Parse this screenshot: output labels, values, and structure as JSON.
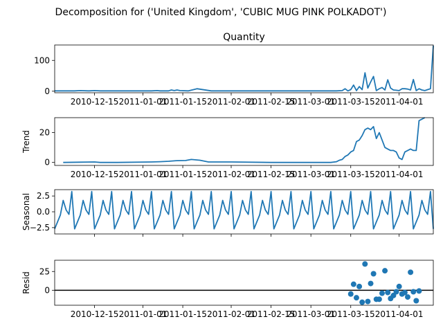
{
  "title": "Decomposition for ('United Kingdom', 'CUBIC MUG PINK POLKADOT')",
  "colors": {
    "line": "#1f77b4",
    "axis": "#000000",
    "zero_line": "#000000",
    "background": "#ffffff"
  },
  "chart_data": [
    {
      "type": "line",
      "panel": "observed",
      "title": "Quantity",
      "ylabel": "",
      "xrange": [
        "2010-12-01",
        "2011-04-13"
      ],
      "ylim": [
        -5,
        150
      ],
      "yticks": [
        0,
        100
      ],
      "xticks": [
        "2010-12-15",
        "2011-01-01",
        "2011-01-15",
        "2011-02-01",
        "2011-02-15",
        "2011-03-01",
        "2011-03-15",
        "2011-04-01"
      ],
      "show_xticklabels": true,
      "series": [
        {
          "x": [
            "2010-12-01",
            "2010-12-03",
            "2010-12-06",
            "2010-12-08",
            "2010-12-10",
            "2010-12-13",
            "2010-12-15",
            "2010-12-17",
            "2010-12-20",
            "2010-12-22",
            "2011-01-04",
            "2011-01-06",
            "2011-01-07",
            "2011-01-10",
            "2011-01-11",
            "2011-01-12",
            "2011-01-13",
            "2011-01-14",
            "2011-01-17",
            "2011-01-20",
            "2011-01-25",
            "2011-02-01",
            "2011-02-15",
            "2011-03-01",
            "2011-03-10",
            "2011-03-12",
            "2011-03-13",
            "2011-03-14",
            "2011-03-15",
            "2011-03-16",
            "2011-03-17",
            "2011-03-18",
            "2011-03-19",
            "2011-03-20",
            "2011-03-21",
            "2011-03-22",
            "2011-03-23",
            "2011-03-24",
            "2011-03-25",
            "2011-03-26",
            "2011-03-27",
            "2011-03-28",
            "2011-03-29",
            "2011-03-30",
            "2011-03-31",
            "2011-04-01",
            "2011-04-02",
            "2011-04-03",
            "2011-04-04",
            "2011-04-05",
            "2011-04-06",
            "2011-04-07",
            "2011-04-08",
            "2011-04-09",
            "2011-04-10",
            "2011-04-11",
            "2011-04-12",
            "2011-04-13"
          ],
          "values": [
            1,
            1,
            1,
            1,
            2,
            1,
            2,
            1,
            1,
            1,
            1,
            2,
            1,
            1,
            4,
            2,
            4,
            2,
            1,
            8,
            1,
            1,
            1,
            1,
            1,
            2,
            8,
            1,
            5,
            20,
            2,
            15,
            5,
            60,
            10,
            30,
            48,
            2,
            8,
            12,
            4,
            37,
            10,
            4,
            3,
            2,
            8,
            8,
            7,
            4,
            38,
            2,
            8,
            4,
            2,
            5,
            8,
            148
          ]
        }
      ]
    },
    {
      "type": "line",
      "panel": "trend",
      "title": "",
      "ylabel": "Trend",
      "xrange": [
        "2010-12-01",
        "2011-04-13"
      ],
      "ylim": [
        -2,
        30
      ],
      "yticks": [
        0,
        20
      ],
      "xticks": [
        "2010-12-15",
        "2011-01-01",
        "2011-01-15",
        "2011-02-01",
        "2011-02-15",
        "2011-03-01",
        "2011-03-15",
        "2011-04-01"
      ],
      "show_xticklabels": true,
      "series": [
        {
          "x": [
            "2010-12-04",
            "2010-12-10",
            "2010-12-15",
            "2010-12-17",
            "2010-12-20",
            "2010-12-23",
            "2011-01-04",
            "2011-01-07",
            "2011-01-10",
            "2011-01-13",
            "2011-01-16",
            "2011-01-18",
            "2011-01-21",
            "2011-01-24",
            "2011-02-01",
            "2011-02-15",
            "2011-03-01",
            "2011-03-08",
            "2011-03-10",
            "2011-03-11",
            "2011-03-12",
            "2011-03-13",
            "2011-03-14",
            "2011-03-15",
            "2011-03-16",
            "2011-03-17",
            "2011-03-18",
            "2011-03-19",
            "2011-03-20",
            "2011-03-21",
            "2011-03-22",
            "2011-03-23",
            "2011-03-24",
            "2011-03-25",
            "2011-03-26",
            "2011-03-27",
            "2011-03-28",
            "2011-03-29",
            "2011-03-30",
            "2011-03-31",
            "2011-04-01",
            "2011-04-02",
            "2011-04-03",
            "2011-04-04",
            "2011-04-05",
            "2011-04-06",
            "2011-04-07",
            "2011-04-08",
            "2011-04-09",
            "2011-04-10"
          ],
          "values": [
            0,
            0.2,
            0.3,
            0,
            0,
            0,
            0.3,
            0.5,
            0.8,
            1.2,
            1.3,
            2,
            1.5,
            0.3,
            0.3,
            0,
            0,
            0,
            0.5,
            1.5,
            2,
            4,
            5,
            7,
            8,
            14,
            15,
            18,
            22,
            23,
            22,
            24,
            16,
            20,
            15,
            10,
            9,
            8,
            8,
            7,
            3,
            2,
            7,
            8,
            9,
            8,
            8,
            28,
            29,
            30
          ]
        }
      ]
    },
    {
      "type": "line",
      "panel": "seasonal",
      "title": "",
      "ylabel": "Seasonal",
      "xrange": [
        "2010-12-01",
        "2011-04-13"
      ],
      "ylim": [
        -3.5,
        3.5
      ],
      "yticks": [
        2.5,
        0.0,
        -2.5
      ],
      "ytick_labels": [
        "2.5",
        "0.0",
        "−2.5"
      ],
      "xticks": [
        "2010-12-15",
        "2011-01-01",
        "2011-01-15",
        "2011-02-01",
        "2011-02-15",
        "2011-03-01",
        "2011-03-15",
        "2011-04-01"
      ],
      "show_xticklabels": false,
      "period_days": 7,
      "cycle": [
        -2.7,
        -1.6,
        -0.5,
        1.8,
        0.3,
        -0.4,
        3.2
      ],
      "series": [
        {
          "x_start": "2010-12-01",
          "x_end": "2011-04-13"
        }
      ]
    },
    {
      "type": "scatter",
      "panel": "resid",
      "title": "",
      "ylabel": "Resid",
      "xrange": [
        "2010-12-01",
        "2011-04-13"
      ],
      "ylim": [
        -20,
        40
      ],
      "yticks": [
        0,
        25
      ],
      "xticks": [
        "2010-12-15",
        "2011-01-01",
        "2011-01-15",
        "2011-02-01",
        "2011-02-15",
        "2011-03-01",
        "2011-03-15",
        "2011-04-01"
      ],
      "show_xticklabels": true,
      "zero_line": true,
      "series": [
        {
          "x": [
            "2011-03-15",
            "2011-03-16",
            "2011-03-17",
            "2011-03-18",
            "2011-03-19",
            "2011-03-20",
            "2011-03-21",
            "2011-03-22",
            "2011-03-23",
            "2011-03-24",
            "2011-03-25",
            "2011-03-26",
            "2011-03-27",
            "2011-03-28",
            "2011-03-29",
            "2011-03-30",
            "2011-03-31",
            "2011-04-01",
            "2011-04-02",
            "2011-04-03",
            "2011-04-04",
            "2011-04-05",
            "2011-04-06",
            "2011-04-07",
            "2011-04-08"
          ],
          "values": [
            -5,
            8,
            -10,
            5,
            -16,
            35,
            -15,
            9,
            22,
            -12,
            -12,
            -4,
            26,
            -3,
            -11,
            -7,
            -2,
            5,
            -5,
            -3,
            -9,
            24,
            -2,
            -14,
            -1
          ]
        }
      ]
    }
  ]
}
